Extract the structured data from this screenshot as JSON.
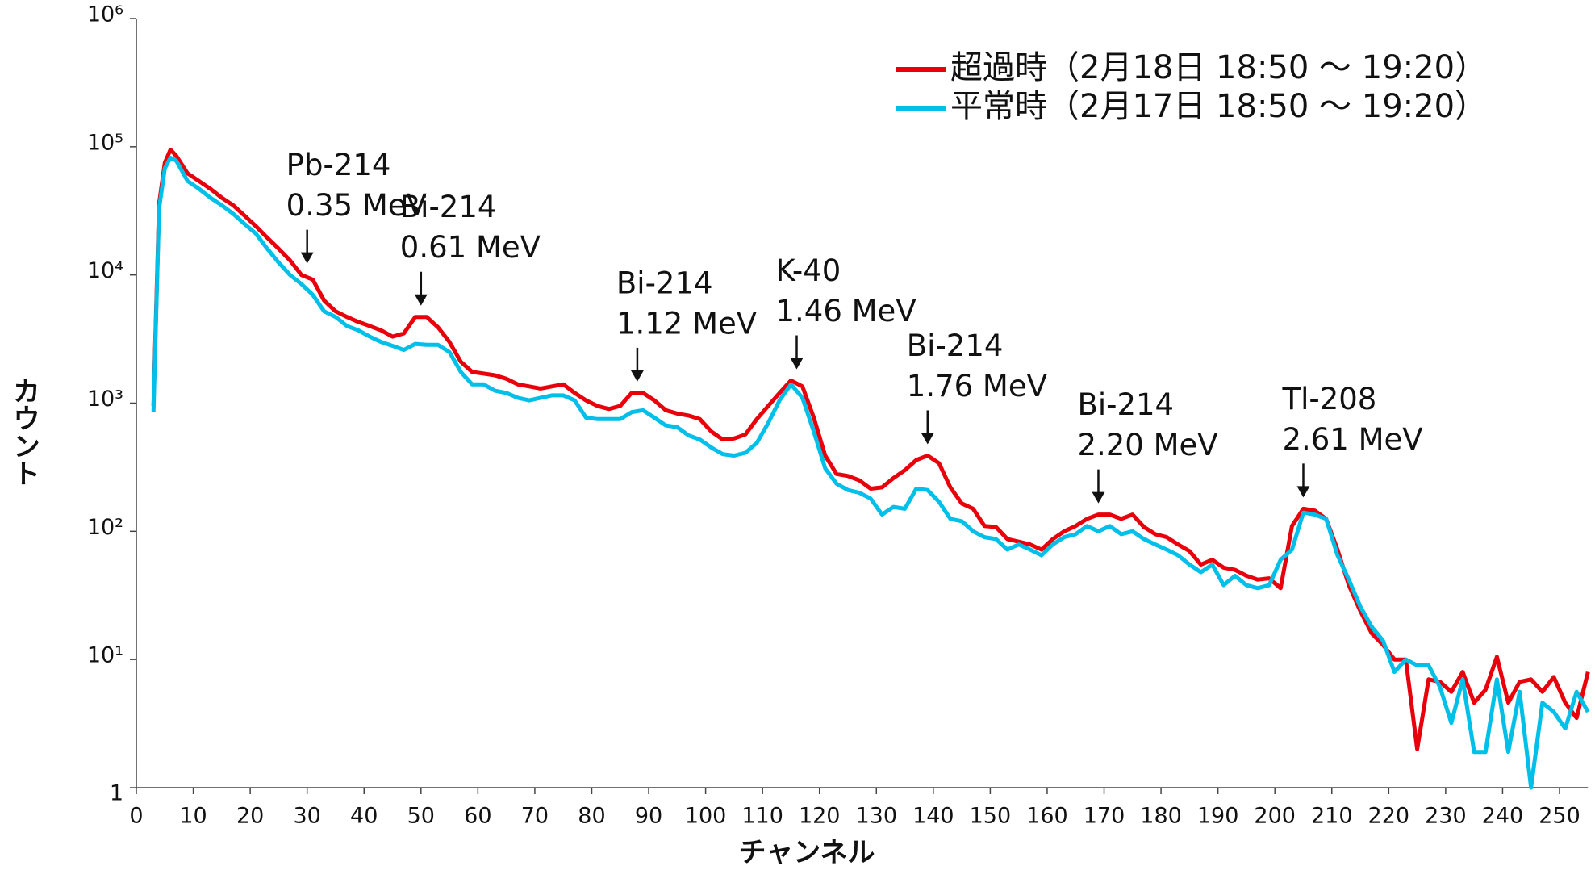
{
  "chart_data": {
    "type": "line",
    "xlabel": "チャンネル",
    "ylabel": "カウント",
    "log_y": true,
    "legend": "upper right",
    "xlim": [
      0,
      255
    ],
    "ylim": [
      1,
      1000000
    ],
    "xticks": [
      0,
      10,
      20,
      30,
      40,
      50,
      60,
      70,
      80,
      90,
      100,
      110,
      120,
      130,
      140,
      150,
      160,
      170,
      180,
      190,
      200,
      210,
      220,
      230,
      240,
      250
    ],
    "yticks": [
      1,
      {
        "value": 10,
        "label": "10¹"
      },
      {
        "value": 100,
        "label": "10²"
      },
      {
        "value": 1000,
        "label": "10³"
      },
      {
        "value": 10000,
        "label": "10⁴"
      },
      {
        "value": 100000,
        "label": "10⁵"
      },
      {
        "value": 1000000,
        "label": "10⁶"
      }
    ],
    "x": [
      3,
      4,
      5,
      6,
      7,
      9,
      11,
      13,
      15,
      17,
      19,
      21,
      23,
      25,
      27,
      29,
      31,
      33,
      35,
      37,
      39,
      41,
      43,
      45,
      47,
      49,
      51,
      53,
      55,
      57,
      59,
      61,
      63,
      65,
      67,
      69,
      71,
      73,
      75,
      77,
      79,
      81,
      83,
      85,
      87,
      89,
      91,
      93,
      95,
      97,
      99,
      101,
      103,
      105,
      107,
      109,
      111,
      113,
      115,
      117,
      119,
      121,
      123,
      125,
      127,
      129,
      131,
      133,
      135,
      137,
      139,
      141,
      143,
      145,
      147,
      149,
      151,
      153,
      155,
      157,
      159,
      161,
      163,
      165,
      167,
      169,
      171,
      173,
      175,
      177,
      179,
      181,
      183,
      185,
      187,
      189,
      191,
      193,
      195,
      197,
      199,
      201,
      203,
      205,
      207,
      209,
      211,
      213,
      215,
      217,
      219,
      221,
      223,
      225,
      227,
      229,
      231,
      233,
      235,
      237,
      239,
      241,
      243,
      245,
      247,
      249,
      251,
      253,
      255
    ],
    "series": [
      {
        "name": "超過時（2月18日 18:50 ～ 19:20）",
        "color": "#e8000b",
        "values": [
          950,
          36000,
          75000,
          95000,
          85000,
          62000,
          54000,
          47000,
          40000,
          35000,
          29000,
          24000,
          19500,
          16000,
          13000,
          10000,
          9200,
          6300,
          5200,
          4700,
          4300,
          4000,
          3700,
          3300,
          3500,
          4700,
          4700,
          3900,
          3000,
          2100,
          1750,
          1700,
          1650,
          1550,
          1400,
          1350,
          1300,
          1350,
          1400,
          1200,
          1050,
          950,
          900,
          950,
          1200,
          1200,
          1050,
          880,
          830,
          800,
          750,
          600,
          520,
          530,
          570,
          750,
          950,
          1200,
          1500,
          1350,
          770,
          390,
          280,
          270,
          250,
          215,
          220,
          260,
          300,
          360,
          390,
          340,
          220,
          165,
          150,
          110,
          108,
          87,
          83,
          79,
          72,
          87,
          100,
          110,
          125,
          135,
          135,
          125,
          135,
          108,
          95,
          90,
          79,
          70,
          55,
          60,
          52,
          50,
          45,
          42,
          43,
          36,
          110,
          150,
          145,
          125,
          72,
          38,
          24,
          16,
          13,
          10,
          10,
          2,
          7,
          6.7,
          5.6,
          8,
          4.6,
          5.8,
          10.5,
          4.6,
          6.7,
          7,
          5.6,
          7.3,
          4.6,
          3.5,
          8
        ]
      },
      {
        "name": "平常時（2月17日 18:50 ～ 19:20）",
        "color": "#00bfe8",
        "values": [
          850,
          33000,
          68000,
          82000,
          78000,
          54000,
          47000,
          40000,
          35000,
          30000,
          25000,
          21000,
          16000,
          12500,
          10000,
          8500,
          7000,
          5200,
          4700,
          4000,
          3700,
          3300,
          3000,
          2800,
          2600,
          2900,
          2850,
          2850,
          2500,
          1750,
          1400,
          1400,
          1250,
          1200,
          1100,
          1050,
          1100,
          1150,
          1150,
          1050,
          770,
          750,
          750,
          750,
          850,
          880,
          770,
          670,
          650,
          560,
          520,
          450,
          400,
          390,
          410,
          490,
          700,
          1050,
          1400,
          1100,
          600,
          310,
          235,
          210,
          200,
          180,
          135,
          155,
          150,
          215,
          210,
          170,
          125,
          120,
          100,
          90,
          87,
          72,
          79,
          72,
          65,
          79,
          90,
          95,
          110,
          100,
          110,
          95,
          100,
          87,
          79,
          72,
          65,
          55,
          48,
          55,
          38,
          45,
          38,
          36,
          38,
          60,
          72,
          140,
          135,
          125,
          65,
          42,
          26,
          18,
          14,
          8,
          10,
          9,
          9,
          6.1,
          3.2,
          7,
          1.9,
          1.9,
          7,
          1.9,
          5.6,
          1,
          4.6,
          3.9,
          2.9,
          5.6,
          3.9
        ]
      }
    ],
    "annotations": [
      {
        "x": 30,
        "lines": [
          "Pb-214",
          "0.35 MeV"
        ]
      },
      {
        "x": 50,
        "lines": [
          "Bi-214",
          "0.61 MeV"
        ]
      },
      {
        "x": 88,
        "lines": [
          "Bi-214",
          "1.12 MeV"
        ]
      },
      {
        "x": 116,
        "lines": [
          "K-40",
          "1.46 MeV"
        ]
      },
      {
        "x": 139,
        "lines": [
          "Bi-214",
          "1.76 MeV"
        ]
      },
      {
        "x": 169,
        "lines": [
          "Bi-214",
          "2.20 MeV"
        ]
      },
      {
        "x": 205,
        "lines": [
          "Tl-208",
          "2.61 MeV"
        ]
      }
    ]
  }
}
